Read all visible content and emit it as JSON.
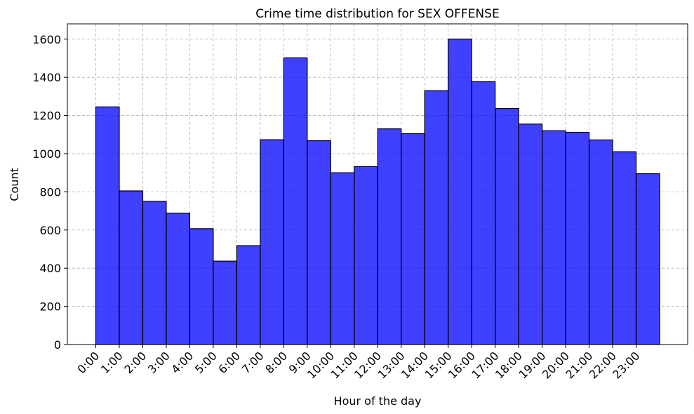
{
  "chart_data": {
    "type": "bar",
    "title": "Crime time distribution for SEX OFFENSE",
    "xlabel": "Hour of the day",
    "ylabel": "Count",
    "categories": [
      "0:00",
      "1:00",
      "2:00",
      "3:00",
      "4:00",
      "5:00",
      "6:00",
      "7:00",
      "8:00",
      "9:00",
      "10:00",
      "11:00",
      "12:00",
      "13:00",
      "14:00",
      "15:00",
      "16:00",
      "17:00",
      "18:00",
      "19:00",
      "20:00",
      "21:00",
      "22:00",
      "23:00"
    ],
    "values": [
      1245,
      805,
      750,
      688,
      607,
      437,
      518,
      1073,
      1502,
      1068,
      900,
      932,
      1130,
      1105,
      1330,
      1600,
      1377,
      1237,
      1155,
      1120,
      1112,
      1072,
      1010,
      895
    ],
    "yticks": [
      0,
      200,
      400,
      600,
      800,
      1000,
      1200,
      1400,
      1600
    ],
    "ylim": [
      0,
      1680
    ],
    "grid": true,
    "bar_color": "#0000ff",
    "bar_opacity": 0.75,
    "edge_color": "#000000",
    "tick_rotation": 45
  }
}
